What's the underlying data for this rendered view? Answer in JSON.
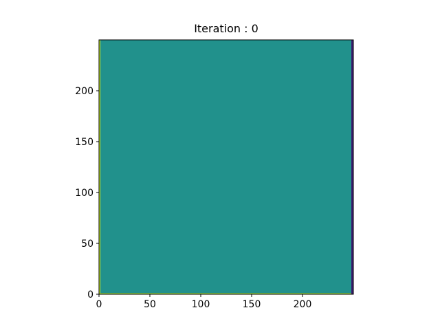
{
  "chart_data": {
    "type": "heatmap",
    "title": "Iteration : 0",
    "xlabel": "",
    "ylabel": "",
    "xlim": [
      0,
      250
    ],
    "ylim": [
      0,
      250
    ],
    "grid": false,
    "origin": "lower",
    "x_ticks": [
      {
        "value": 0,
        "label": "0"
      },
      {
        "value": 50,
        "label": "50"
      },
      {
        "value": 100,
        "label": "100"
      },
      {
        "value": 150,
        "label": "150"
      },
      {
        "value": 200,
        "label": "200"
      }
    ],
    "y_ticks": [
      {
        "value": 0,
        "label": "0"
      },
      {
        "value": 50,
        "label": "50"
      },
      {
        "value": 100,
        "label": "100"
      },
      {
        "value": 150,
        "label": "150"
      },
      {
        "value": 200,
        "label": "200"
      }
    ],
    "colormap": "viridis",
    "regions": [
      {
        "name": "interior",
        "x": [
          0,
          250
        ],
        "y": [
          0,
          250
        ],
        "color": "#21918c"
      },
      {
        "name": "left-edge",
        "x": [
          0,
          1
        ],
        "y": [
          0,
          250
        ],
        "color": "#bddf26"
      },
      {
        "name": "bottom-edge",
        "x": [
          0,
          250
        ],
        "y": [
          0,
          1
        ],
        "color": "#bddf26"
      },
      {
        "name": "right-edge",
        "x": [
          248,
          250
        ],
        "y": [
          0,
          250
        ],
        "color": "#3b1a6e"
      }
    ]
  }
}
